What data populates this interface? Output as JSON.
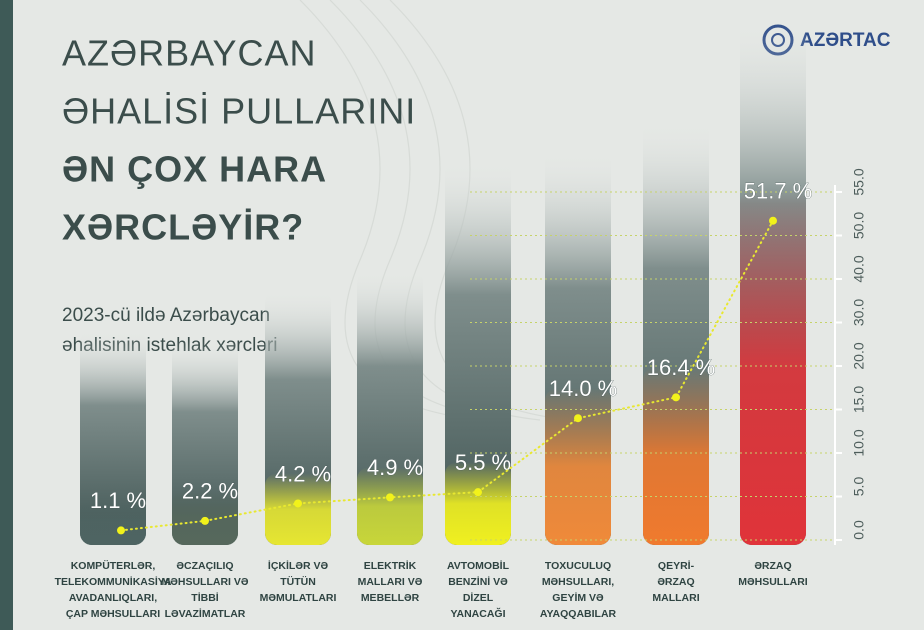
{
  "logo": "AZƏRTAC",
  "chart_data": {
    "type": "bar",
    "title": [
      "AZƏRBAYCAN",
      "ƏHALİSİ PULLARINI",
      "ƏN ÇOX HARA",
      "XƏRCLƏYİR?"
    ],
    "subtitle": [
      "2023-cü ildə Azərbaycan",
      "əhalisinin istehlak xərcləri"
    ],
    "categories": [
      [
        "KOMPÜTERLƏR,",
        "TELEKOMMUNİKASİYA",
        "AVADANLIQLARI,",
        "ÇAP MƏHSULLARI"
      ],
      [
        "ƏCZAÇILIQ",
        "MƏHSULLARI VƏ",
        "TİBBİ",
        "LƏVAZİMATLAR"
      ],
      [
        "İÇKİLƏR VƏ",
        "TÜTÜN",
        "MƏMULATLARI"
      ],
      [
        "ELEKTRİK",
        "MALLARI VƏ",
        "MEBELLƏR"
      ],
      [
        "AVTOMOBİL",
        "BENZİNİ VƏ",
        "DİZEL",
        "YANACAĞI"
      ],
      [
        "TOXUCULUQ",
        "MƏHSULLARI,",
        "GEYİM VƏ",
        "AYAQQABILAR"
      ],
      [
        "QEYRİ-",
        "ƏRZAQ",
        "MALLARI"
      ],
      [
        "ƏRZAQ",
        "MƏHSULLARI"
      ]
    ],
    "values": [
      1.1,
      2.2,
      4.2,
      4.9,
      5.5,
      14.0,
      16.4,
      51.7
    ],
    "value_labels": [
      "1.1 %",
      "2.2 %",
      "4.2 %",
      "4.9 %",
      "5.5 %",
      "14.0 %",
      "16.4 %",
      "51.7 %"
    ],
    "colors": [
      "#4e6462",
      "#56685c",
      "#e6e632",
      "#c8d63a",
      "#f0f020",
      "#f08a3a",
      "#f07a2e",
      "#e0343a"
    ],
    "ylim": [
      0,
      55
    ],
    "yticks": [
      {
        "value": 0,
        "label": "0.0"
      },
      {
        "value": 5,
        "label": "5.0"
      },
      {
        "value": 10,
        "label": "10.0"
      },
      {
        "value": 15,
        "label": "15.0"
      },
      {
        "value": 20,
        "label": "20.0"
      },
      {
        "value": 30,
        "label": "30.0"
      },
      {
        "value": 40,
        "label": "40.0"
      },
      {
        "value": 50,
        "label": "50.0"
      },
      {
        "value": 55,
        "label": "55.0"
      }
    ],
    "grid": true
  }
}
